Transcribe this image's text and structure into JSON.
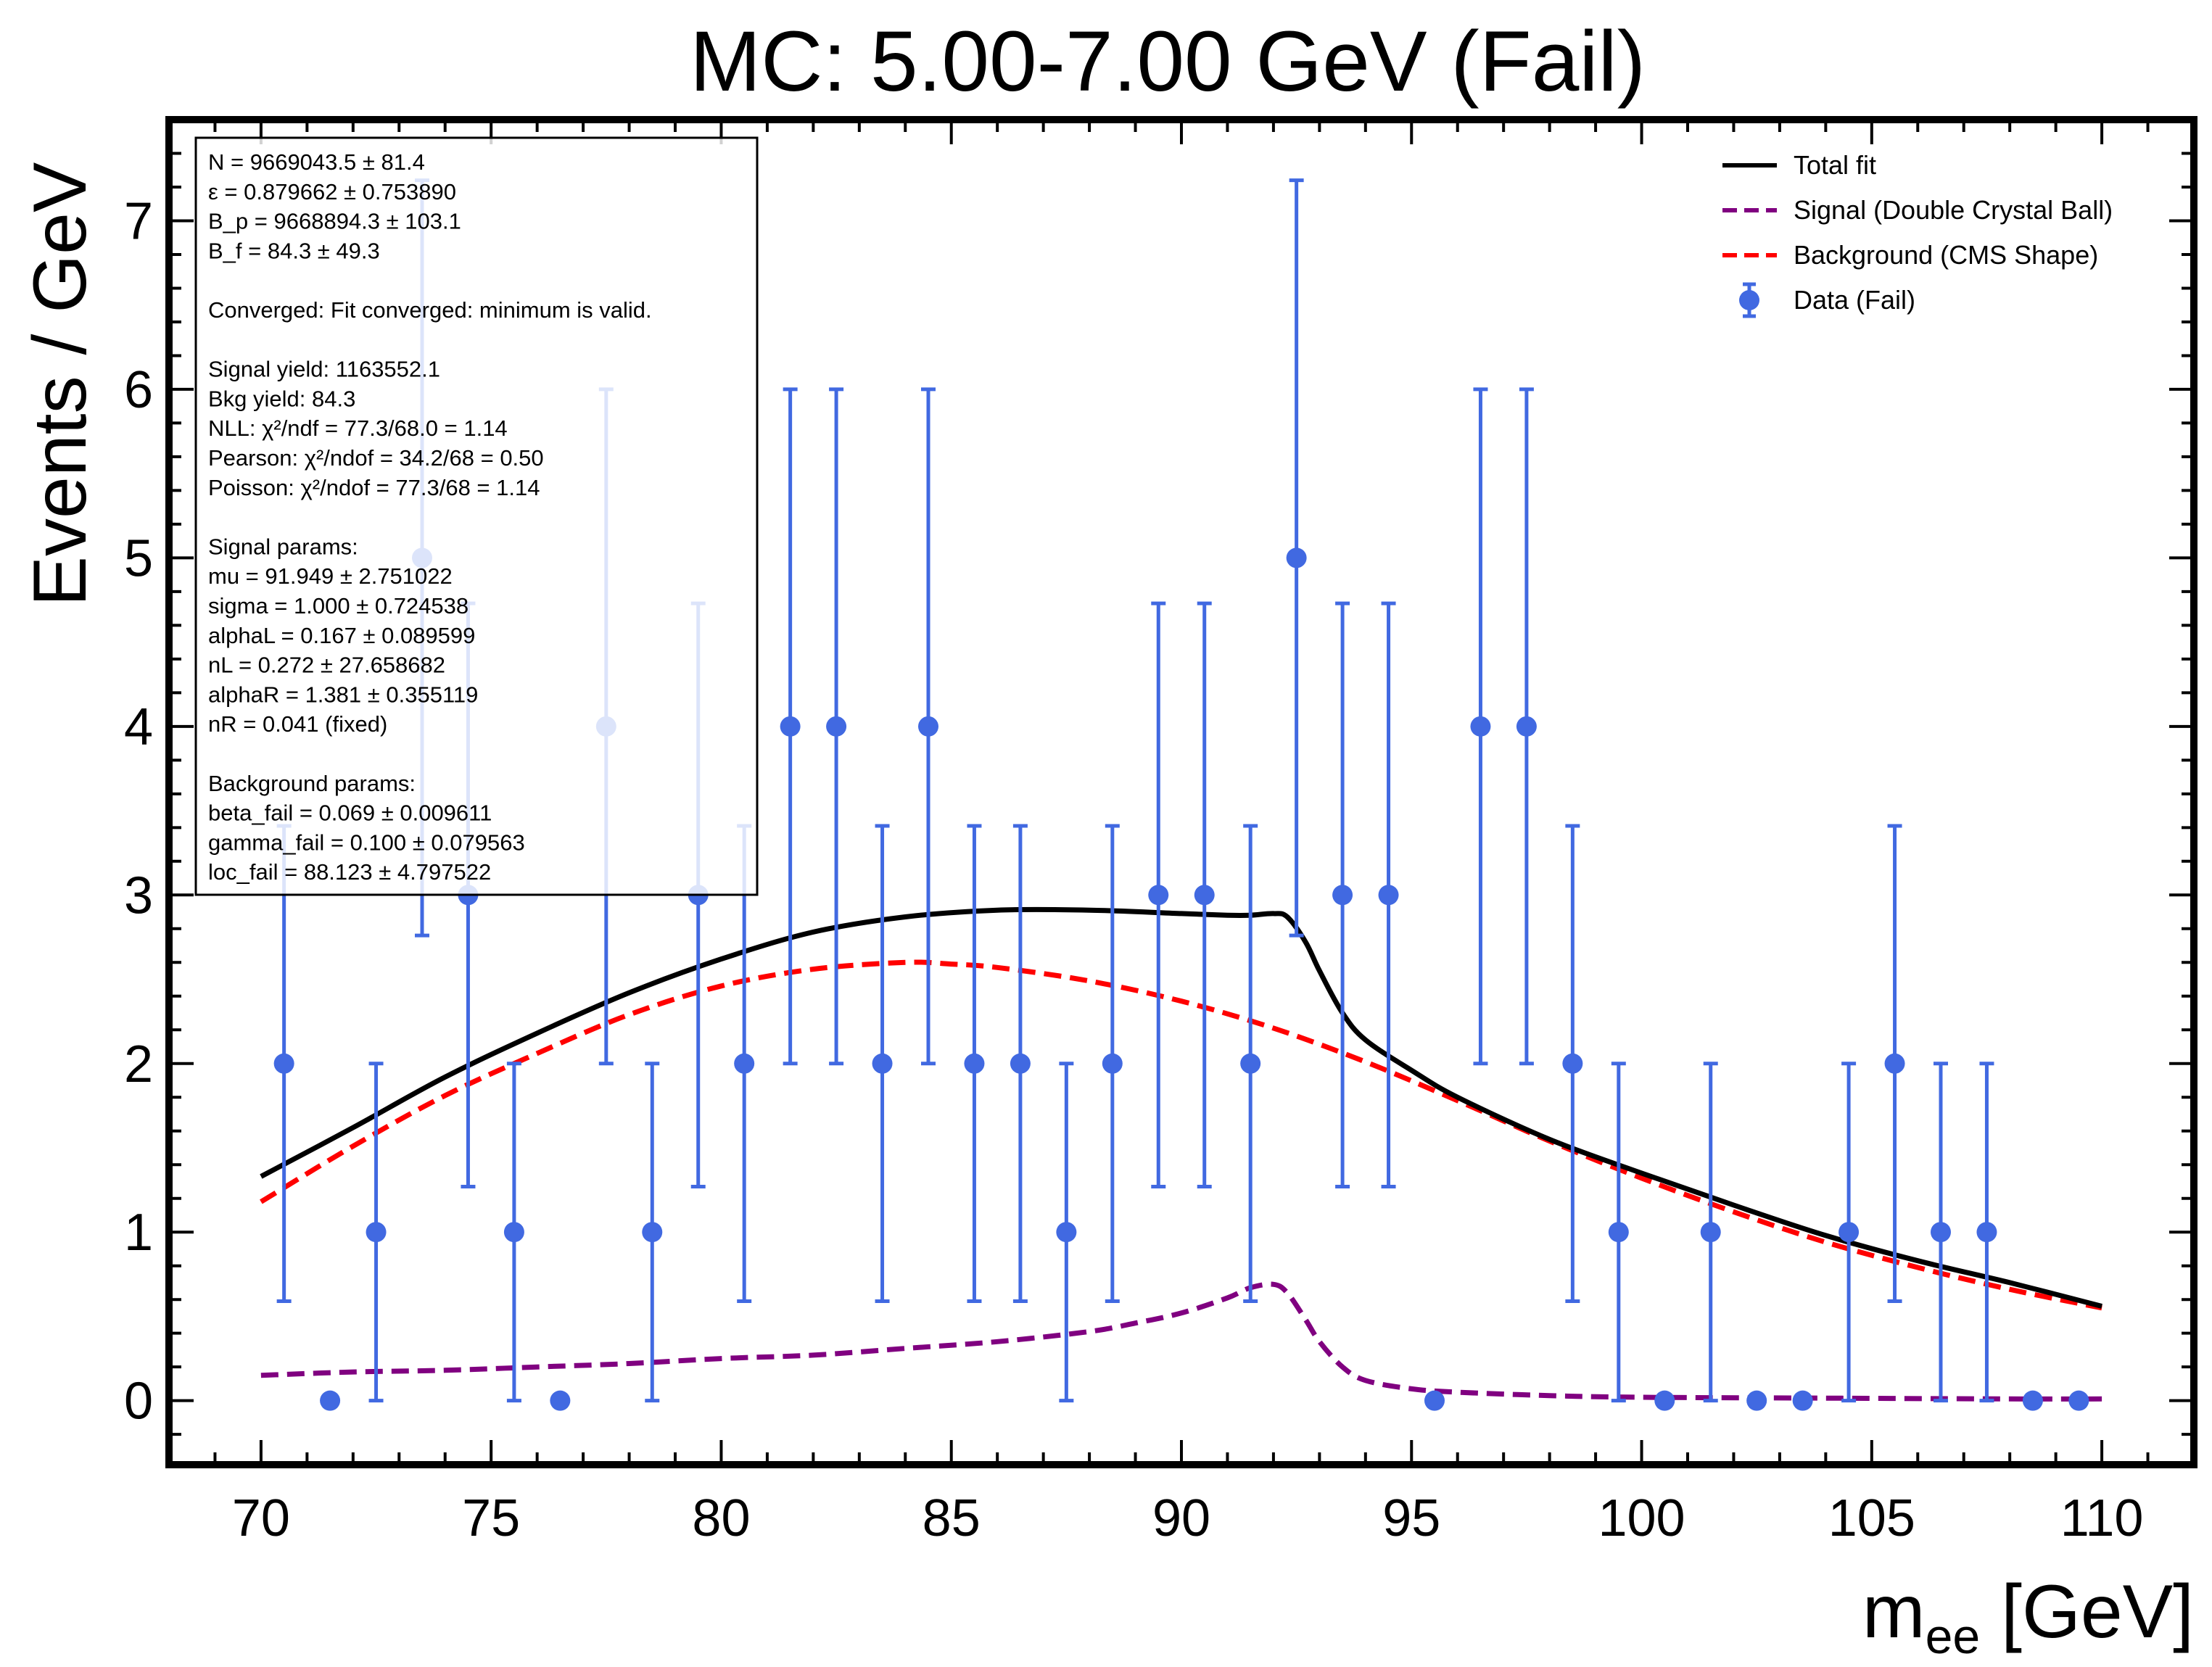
{
  "chart_data": {
    "type": "scatter",
    "title": "MC: 5.00-7.00 GeV (Fail)",
    "xlabel_main": "m",
    "xlabel_sub": "ee",
    "xlabel_unit": " [GeV]",
    "ylabel": "Events / GeV",
    "xlim": [
      68,
      112
    ],
    "ylim": [
      -0.38,
      7.6
    ],
    "xticks": [
      70,
      75,
      80,
      85,
      90,
      95,
      100,
      105,
      110
    ],
    "yticks": [
      0,
      1,
      2,
      3,
      4,
      5,
      6,
      7
    ],
    "grid": false,
    "legend_position": "top-right",
    "colors": {
      "data": "#4169e1",
      "total_fit": "#000000",
      "signal": "#800080",
      "background": "#ff0000"
    },
    "legend": [
      {
        "label": "Total fit",
        "style": "solid",
        "color": "#000000"
      },
      {
        "label": "Signal (Double Crystal Ball)",
        "style": "dashed",
        "color": "#800080"
      },
      {
        "label": "Background (CMS Shape)",
        "style": "dashed",
        "color": "#ff0000"
      },
      {
        "label": "Data (Fail)",
        "style": "marker",
        "color": "#4169e1"
      }
    ],
    "info_lines": [
      "N = 9669043.5 ± 81.4",
      "ε = 0.879662 ± 0.753890",
      "B_p = 9668894.3 ± 103.1",
      "B_f = 84.3 ± 49.3",
      "",
      "Converged: Fit converged: minimum is valid.",
      "",
      "Signal yield: 1163552.1",
      "Bkg yield: 84.3",
      "NLL: χ²/ndf = 77.3/68.0 = 1.14",
      "Pearson: χ²/ndof = 34.2/68 = 0.50",
      "Poisson: χ²/ndof = 77.3/68 = 1.14",
      "",
      "Signal params:",
      "mu = 91.949 ± 2.751022",
      "sigma = 1.000 ± 0.724538",
      "alphaL = 0.167 ± 0.089599",
      "nL = 0.272 ± 27.658682",
      "alphaR = 1.381 ± 0.355119",
      "nR = 0.041 (fixed)",
      "",
      "Background params:",
      "beta_fail = 0.069 ± 0.009611",
      "gamma_fail = 0.100 ± 0.079563",
      "loc_fail = 88.123 ± 4.797522"
    ],
    "data_points": {
      "x": [
        70.5,
        71.5,
        72.5,
        73.5,
        74.5,
        75.5,
        76.5,
        77.5,
        78.5,
        79.5,
        80.5,
        81.5,
        82.5,
        83.5,
        84.5,
        85.5,
        86.5,
        87.5,
        88.5,
        89.5,
        90.5,
        91.5,
        92.5,
        93.5,
        94.5,
        95.5,
        96.5,
        97.5,
        98.5,
        99.5,
        100.5,
        101.5,
        102.5,
        103.5,
        104.5,
        105.5,
        106.5,
        107.5,
        108.5,
        109.5
      ],
      "y": [
        2,
        0,
        1,
        5,
        3,
        1,
        0,
        4,
        1,
        3,
        2,
        4,
        4,
        2,
        4,
        2,
        2,
        1,
        2,
        3,
        3,
        2,
        5,
        3,
        3,
        0,
        4,
        4,
        2,
        1,
        0,
        1,
        0,
        0,
        1,
        2,
        1,
        1,
        0,
        0
      ],
      "err_low": [
        1.41,
        0,
        1,
        2.24,
        1.73,
        1,
        0,
        2,
        1,
        1.73,
        1.41,
        2,
        2,
        1.41,
        2,
        1.41,
        1.41,
        1,
        1.41,
        1.73,
        1.73,
        1.41,
        2.24,
        1.73,
        1.73,
        0,
        2,
        2,
        1.41,
        1,
        0,
        1,
        0,
        0,
        1,
        1.41,
        1,
        1,
        0,
        0
      ],
      "err_high": [
        1.41,
        0,
        1,
        2.24,
        1.73,
        1,
        0,
        2,
        1,
        1.73,
        1.41,
        2,
        2,
        1.41,
        2,
        1.41,
        1.41,
        1,
        1.41,
        1.73,
        1.73,
        1.41,
        2.24,
        1.73,
        1.73,
        0,
        2,
        2,
        1.41,
        1,
        0,
        1,
        0,
        0,
        1,
        1.41,
        1,
        1,
        0,
        0
      ]
    },
    "curves": {
      "total_fit": {
        "x": [
          70,
          72,
          74,
          76,
          78,
          80,
          82,
          84,
          86,
          88,
          90,
          91,
          91.5,
          92,
          92.3,
          92.7,
          93,
          93.5,
          94,
          95,
          96,
          98,
          100,
          102,
          104,
          106,
          108,
          110
        ],
        "y": [
          1.33,
          1.62,
          1.92,
          2.18,
          2.42,
          2.62,
          2.78,
          2.87,
          2.91,
          2.91,
          2.89,
          2.88,
          2.88,
          2.89,
          2.87,
          2.72,
          2.55,
          2.3,
          2.14,
          1.96,
          1.8,
          1.55,
          1.35,
          1.16,
          0.98,
          0.83,
          0.7,
          0.56
        ]
      },
      "signal": {
        "x": [
          70,
          72,
          74,
          76,
          78,
          80,
          82,
          84,
          86,
          88,
          89,
          90,
          91,
          91.5,
          92,
          92.3,
          92.7,
          93,
          93.5,
          94,
          95,
          96,
          98,
          100,
          104,
          108,
          110
        ],
        "y": [
          0.15,
          0.17,
          0.18,
          0.2,
          0.22,
          0.25,
          0.27,
          0.31,
          0.35,
          0.41,
          0.46,
          0.52,
          0.61,
          0.67,
          0.69,
          0.64,
          0.48,
          0.35,
          0.2,
          0.12,
          0.07,
          0.05,
          0.03,
          0.02,
          0.015,
          0.01,
          0.01
        ]
      },
      "background": {
        "x": [
          70,
          72,
          74,
          76,
          78,
          80,
          82,
          84,
          85,
          86,
          88,
          90,
          92,
          94,
          96,
          98,
          100,
          102,
          104,
          106,
          108,
          110
        ],
        "y": [
          1.18,
          1.51,
          1.81,
          2.06,
          2.29,
          2.46,
          2.56,
          2.6,
          2.59,
          2.57,
          2.49,
          2.37,
          2.21,
          2.01,
          1.78,
          1.54,
          1.32,
          1.12,
          0.94,
          0.79,
          0.66,
          0.55
        ]
      }
    }
  }
}
